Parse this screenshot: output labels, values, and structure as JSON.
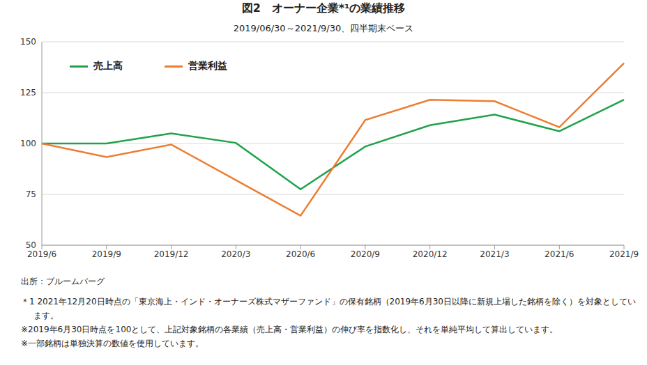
{
  "chart_data": {
    "type": "line",
    "title": "図2　オーナー企業*¹の業績推移",
    "subtitle": "2019/06/30～2021/9/30、四半期末ベース",
    "categories": [
      "2019/6",
      "2019/9",
      "2019/12",
      "2020/3",
      "2020/6",
      "2020/9",
      "2020/12",
      "2021/3",
      "2021/6",
      "2021/9"
    ],
    "series": [
      {
        "name": "売上高",
        "color": "#1fa34a",
        "values": [
          100,
          100,
          105,
          100.3,
          77.5,
          98.5,
          109,
          114.2,
          106,
          121.5
        ]
      },
      {
        "name": "営業利益",
        "color": "#ed7d31",
        "values": [
          100,
          93.3,
          99.5,
          82,
          64.5,
          111.5,
          121.5,
          120.8,
          108,
          139.5
        ]
      }
    ],
    "ylim": [
      50,
      150
    ],
    "yticks": [
      50,
      75,
      100,
      125,
      150
    ],
    "grid": true,
    "legend": "upper left",
    "source": "出所：ブルームバーグ",
    "notes": [
      "＊1 2021年12月20日時点の「東京海上・インド・オーナーズ株式マザーファンド」の保有銘柄（2019年6月30日以降に新規上場した銘柄を除く）を対象としています。",
      "※2019年6月30日時点を100として、上記対象銘柄の各業績（売上高・営業利益）の伸び率を指数化し、それを単純平均して算出しています。",
      "※一部銘柄は単独決算の数値を使用しています。"
    ]
  }
}
